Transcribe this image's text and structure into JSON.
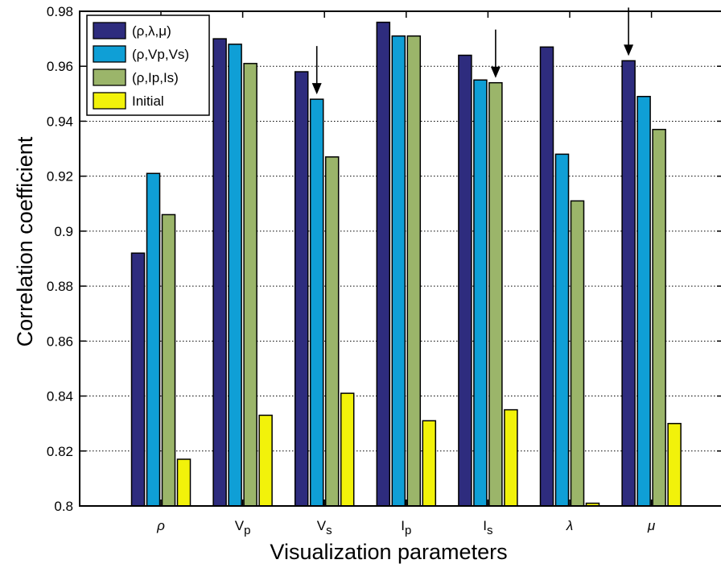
{
  "chart_data": {
    "type": "bar",
    "xlabel": "Visualization parameters",
    "ylabel": "Correlation coefficient",
    "ylim": [
      0.8,
      0.98
    ],
    "yticks": [
      0.8,
      0.82,
      0.84,
      0.86,
      0.88,
      0.9,
      0.92,
      0.94,
      0.96,
      0.98
    ],
    "ytick_labels": [
      "0.8",
      "0.82",
      "0.84",
      "0.86",
      "0.88",
      "0.9",
      "0.92",
      "0.94",
      "0.96",
      "0.98"
    ],
    "grid": "horizontal dotted",
    "legend_position": "top-left",
    "categories": [
      {
        "main": "ρ",
        "sub": ""
      },
      {
        "main": "V",
        "sub": "p"
      },
      {
        "main": "V",
        "sub": "s"
      },
      {
        "main": "I",
        "sub": "p"
      },
      {
        "main": "I",
        "sub": "s"
      },
      {
        "main": "λ",
        "sub": ""
      },
      {
        "main": "μ",
        "sub": ""
      }
    ],
    "series": [
      {
        "name": "(ρ,λ,μ)",
        "color": "#2e2c7e",
        "values": [
          0.892,
          0.97,
          0.958,
          0.976,
          0.964,
          0.967,
          0.962
        ]
      },
      {
        "name": "(ρ,Vp,Vs)",
        "color": "#0f9fd6",
        "values": [
          0.921,
          0.968,
          0.948,
          0.971,
          0.955,
          0.928,
          0.949
        ]
      },
      {
        "name": "(ρ,Ip,Is)",
        "color": "#9bb56a",
        "values": [
          0.906,
          0.961,
          0.927,
          0.971,
          0.954,
          0.911,
          0.937
        ]
      },
      {
        "name": "Initial",
        "color": "#f2f20a",
        "values": [
          0.817,
          0.833,
          0.841,
          0.831,
          0.835,
          0.801,
          0.83
        ]
      }
    ],
    "annotations": [
      {
        "type": "arrow",
        "category_index": 2,
        "series_index": 1
      },
      {
        "type": "arrow",
        "category_index": 4,
        "series_index": 2
      },
      {
        "type": "arrow",
        "category_index": 6,
        "series_index": 0
      }
    ]
  }
}
